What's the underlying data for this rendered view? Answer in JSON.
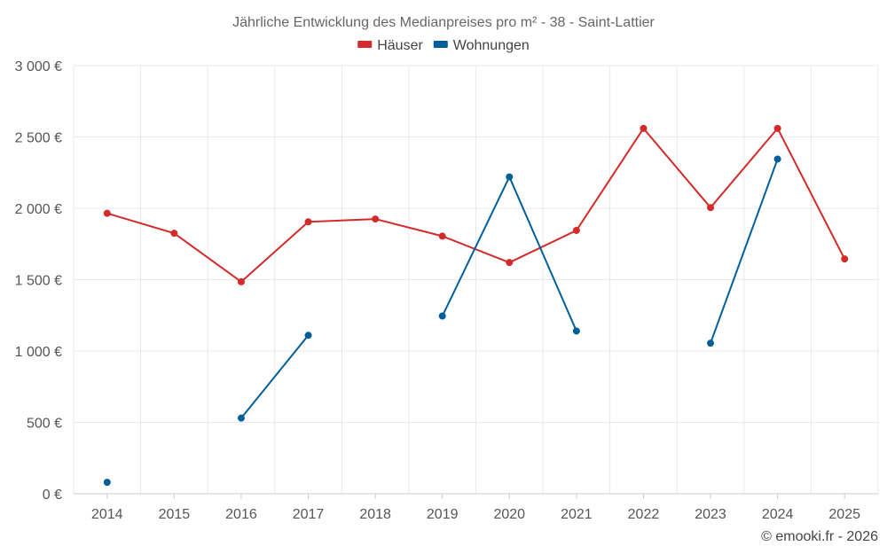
{
  "chart_data": {
    "type": "line",
    "title": "Jährliche Entwicklung des Medianpreises pro m² - 38 - Saint-Lattier",
    "categories": [
      "2014",
      "2015",
      "2016",
      "2017",
      "2018",
      "2019",
      "2020",
      "2021",
      "2022",
      "2023",
      "2024",
      "2025"
    ],
    "ylim": [
      0,
      3000
    ],
    "y_ticks": [
      0,
      500,
      1000,
      1500,
      2000,
      2500,
      3000
    ],
    "y_tick_labels": [
      "0 €",
      "500 €",
      "1 000 €",
      "1 500 €",
      "2 000 €",
      "2 500 €",
      "3 000 €"
    ],
    "series": [
      {
        "name": "Häuser",
        "color": "#d32a2a",
        "values": [
          1965,
          1825,
          1485,
          1905,
          1925,
          1805,
          1620,
          1845,
          2560,
          2005,
          2560,
          1645
        ]
      },
      {
        "name": "Wohnungen",
        "color": "#005f99",
        "values": [
          80,
          null,
          530,
          1110,
          null,
          1245,
          2220,
          1140,
          null,
          1055,
          2345,
          null
        ]
      }
    ],
    "grid": true,
    "legend": "top-center"
  },
  "credit": "© emooki.fr - 2026"
}
